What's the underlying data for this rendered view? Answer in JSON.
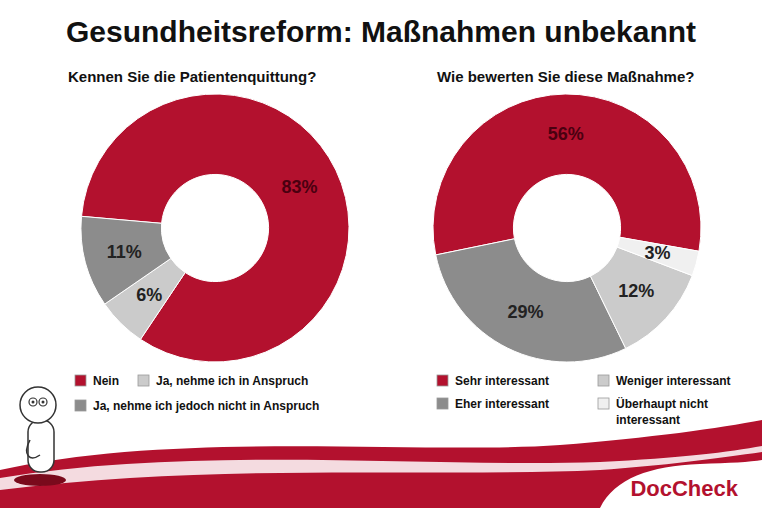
{
  "header": {
    "title": "Gesundheitsreform: Maßnahmen unbekannt",
    "brand": "DocCheck"
  },
  "chart_data": [
    {
      "type": "donut",
      "title": "Kennen Sie die Patientenquittung?",
      "categories": [
        "Nein",
        "Ja, nehme ich in Anspruch",
        "Ja, nehme ich jedoch nicht in Anspruch"
      ],
      "values": [
        83,
        6,
        11
      ],
      "value_labels": [
        "83%",
        "6%",
        "11%"
      ],
      "colors": [
        "#b3112e",
        "#cbcbcb",
        "#8c8c8c"
      ],
      "data_labels": true,
      "legend": "bottom"
    },
    {
      "type": "donut",
      "title": "Wie bewerten Sie diese Maßnahme?",
      "categories": [
        "Sehr interessant",
        "Eher interessant",
        "Weniger interessant",
        "Überhaupt nicht interessant"
      ],
      "values": [
        56,
        29,
        12,
        3
      ],
      "value_labels": [
        "56%",
        "29%",
        "12%",
        "3%"
      ],
      "colors": [
        "#b3112e",
        "#8c8c8c",
        "#cbcbcb",
        "#f0f0f0"
      ],
      "data_labels": true,
      "legend": "bottom"
    }
  ]
}
